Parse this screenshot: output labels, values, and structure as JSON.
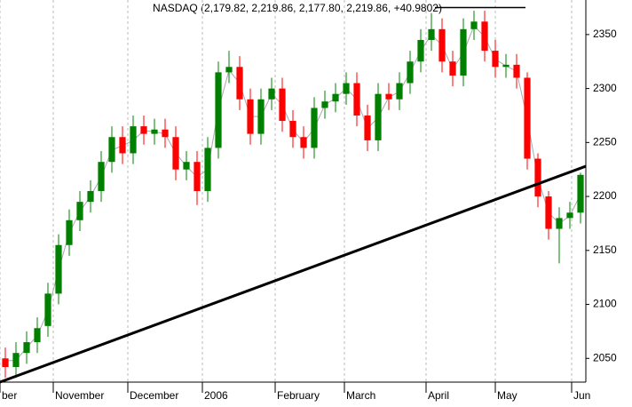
{
  "chart_data": {
    "type": "candlestick",
    "title": "NASDAQ (2,179.82, 2,219.86, 2,177.80, 2,219.86, +40.9802)",
    "x": [
      1.5,
      4.5,
      7.5,
      10.5,
      13.5,
      16.5,
      19.5,
      22.5,
      25.5,
      28.5,
      31.5,
      34.5,
      37.5,
      40.5,
      43.5,
      46.5,
      49.5,
      52.5,
      55.5,
      58.5,
      61.5,
      64.5,
      67.5,
      70.5,
      73.5,
      76.5,
      79.5,
      82.5,
      85.5,
      88.5,
      91.5,
      94.5,
      97.5,
      100.5,
      103.5,
      106.5,
      109.5,
      112.5,
      115.5,
      118.5,
      121.5,
      124.5,
      127.5,
      130.5,
      133.5,
      136.5,
      139.5,
      142.5,
      145.5,
      148.5,
      151.5,
      154.5,
      157.5,
      160.5,
      163.5
    ],
    "open": [
      2050,
      2042,
      2055,
      2065,
      2080,
      2110,
      2155,
      2178,
      2195,
      2205,
      2232,
      2255,
      2240,
      2265,
      2258,
      2262,
      2255,
      2225,
      2232,
      2205,
      2245,
      2315,
      2320,
      2290,
      2258,
      2290,
      2300,
      2270,
      2255,
      2245,
      2282,
      2288,
      2295,
      2305,
      2275,
      2252,
      2295,
      2290,
      2305,
      2325,
      2345,
      2355,
      2325,
      2312,
      2355,
      2362,
      2335,
      2320,
      2322,
      2310,
      2235,
      2200,
      2170,
      2180,
      2185
    ],
    "high": [
      2060,
      2065,
      2075,
      2088,
      2120,
      2165,
      2188,
      2205,
      2215,
      2242,
      2265,
      2265,
      2275,
      2275,
      2272,
      2272,
      2265,
      2242,
      2242,
      2255,
      2325,
      2335,
      2330,
      2300,
      2300,
      2310,
      2310,
      2280,
      2265,
      2292,
      2298,
      2305,
      2315,
      2315,
      2285,
      2305,
      2305,
      2315,
      2335,
      2355,
      2370,
      2365,
      2335,
      2365,
      2372,
      2372,
      2345,
      2332,
      2332,
      2315,
      2240,
      2205,
      2190,
      2195,
      2222
    ],
    "low": [
      2032,
      2032,
      2045,
      2055,
      2070,
      2100,
      2145,
      2168,
      2185,
      2195,
      2222,
      2230,
      2230,
      2248,
      2248,
      2245,
      2215,
      2215,
      2192,
      2195,
      2235,
      2305,
      2280,
      2248,
      2248,
      2280,
      2260,
      2245,
      2235,
      2235,
      2272,
      2278,
      2285,
      2265,
      2242,
      2242,
      2280,
      2280,
      2295,
      2315,
      2335,
      2315,
      2302,
      2302,
      2345,
      2325,
      2310,
      2310,
      2300,
      2225,
      2190,
      2160,
      2138,
      2170,
      2175
    ],
    "close": [
      2042,
      2055,
      2065,
      2078,
      2110,
      2155,
      2178,
      2195,
      2205,
      2232,
      2255,
      2240,
      2265,
      2258,
      2262,
      2255,
      2225,
      2232,
      2205,
      2245,
      2315,
      2320,
      2290,
      2258,
      2290,
      2300,
      2270,
      2255,
      2245,
      2282,
      2288,
      2295,
      2305,
      2275,
      2252,
      2295,
      2290,
      2305,
      2325,
      2345,
      2355,
      2325,
      2312,
      2355,
      2362,
      2335,
      2320,
      2322,
      2310,
      2235,
      2200,
      2170,
      2180,
      2185,
      2220
    ],
    "ma": [
      2048,
      2048,
      2060,
      2071,
      2094,
      2132,
      2166,
      2186,
      2200,
      2218,
      2243,
      2247,
      2252,
      2261,
      2260,
      2258,
      2240,
      2228,
      2218,
      2225,
      2280,
      2317,
      2305,
      2274,
      2274,
      2295,
      2285,
      2262,
      2250,
      2263,
      2285,
      2291,
      2300,
      2290,
      2263,
      2273,
      2292,
      2297,
      2315,
      2335,
      2350,
      2340,
      2318,
      2333,
      2358,
      2348,
      2327,
      2321,
      2316,
      2272,
      2217,
      2185,
      2175,
      2182,
      2202
    ],
    "up_color": "#008000",
    "down_color": "#ff0000",
    "ma_color": "#a8a8a8",
    "trendline": {
      "x": [
        0,
        165
      ],
      "y": [
        2028,
        2228
      ]
    },
    "resistance": {
      "x": [
        122.5,
        148
      ],
      "y": [
        2375,
        2375
      ]
    },
    "xlim": [
      0,
      165
    ],
    "xticks": [
      {
        "value": 0,
        "label": "ber"
      },
      {
        "value": 15,
        "label": "November"
      },
      {
        "value": 36,
        "label": "December"
      },
      {
        "value": 57,
        "label": "2006"
      },
      {
        "value": 77.5,
        "label": "February"
      },
      {
        "value": 97,
        "label": "March"
      },
      {
        "value": 120,
        "label": "April"
      },
      {
        "value": 139.5,
        "label": "May"
      },
      {
        "value": 161,
        "label": "Jun"
      }
    ],
    "ylim": [
      2028,
      2382
    ],
    "yticks": [
      2050,
      2100,
      2150,
      2200,
      2250,
      2300,
      2350
    ],
    "grid": true
  }
}
